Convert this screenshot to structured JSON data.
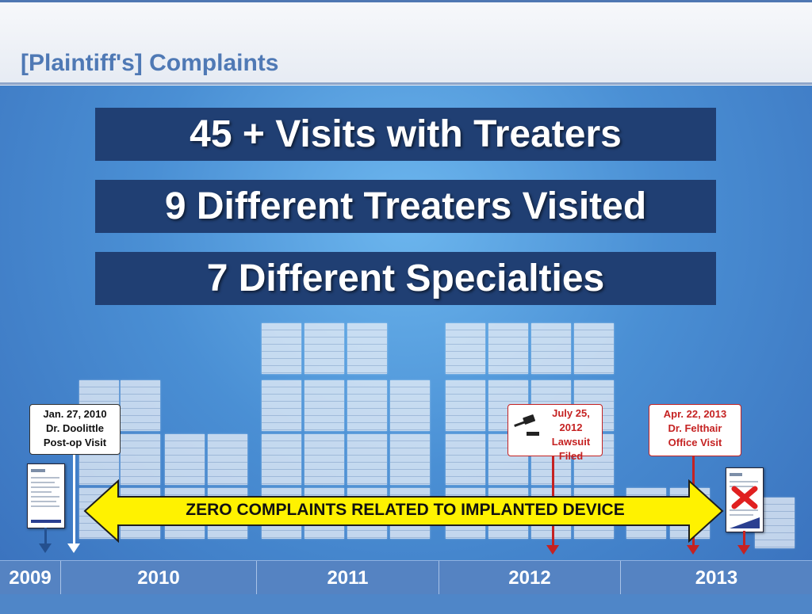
{
  "slide": {
    "title": "[Plaintiff's] Complaints",
    "stats": [
      {
        "label": "45 + Visits with Treaters"
      },
      {
        "label": "9 Different Treaters Visited"
      },
      {
        "label": "7 Different Specialties"
      }
    ],
    "banner": "ZERO COMPLAINTS RELATED TO IMPLANTED DEVICE",
    "callouts": [
      {
        "label": "Jan. 27, 2010\nDr. Doolittle\nPost-op Visit",
        "color": "#111111"
      },
      {
        "label": "July 25,\n2012\nLawsuit Filed",
        "color": "#c52222"
      },
      {
        "label": "Apr. 22, 2013\nDr. Felthair\nOffice Visit",
        "color": "#c52222"
      }
    ],
    "timeline": {
      "years": [
        "2009",
        "2010",
        "2011",
        "2012",
        "2013"
      ]
    },
    "icons": {
      "gavel": "gavel-icon",
      "reject": "red-x-icon"
    },
    "colors": {
      "title": "#4f79b5",
      "stat_box": "#203f73",
      "banner": "#fff200",
      "event_red": "#c52222",
      "timeline_bar": "#5583c2"
    }
  }
}
